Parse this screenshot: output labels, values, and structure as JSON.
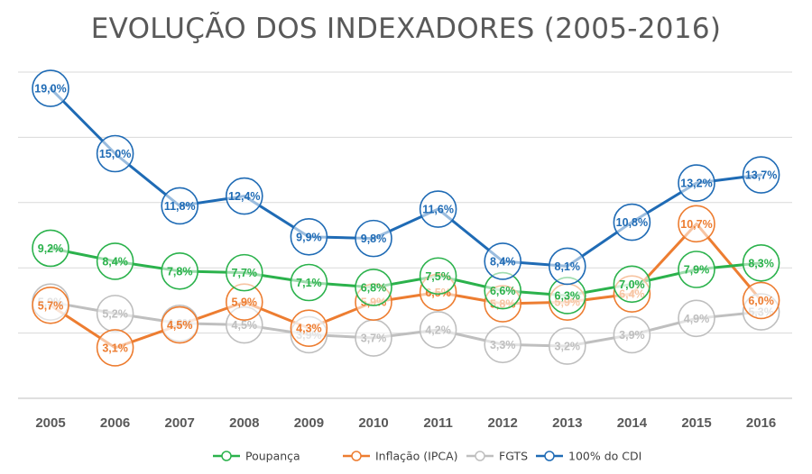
{
  "chart_data": {
    "type": "line",
    "title": "EVOLUÇÃO DOS INDEXADORES (2005-2016)",
    "categories": [
      "2005",
      "2006",
      "2007",
      "2008",
      "2009",
      "2010",
      "2011",
      "2012",
      "2013",
      "2014",
      "2015",
      "2016"
    ],
    "ylim": [
      0,
      20
    ],
    "grid": true,
    "legend_position": "bottom",
    "y_axis_labels_visible": false,
    "series": [
      {
        "name": "Poupança",
        "color": "#2BB24C",
        "values": [
          9.2,
          8.4,
          7.8,
          7.7,
          7.1,
          6.8,
          7.5,
          6.6,
          6.3,
          7.0,
          7.9,
          8.3
        ],
        "labels": [
          "9,2%",
          "8,4%",
          "7,8%",
          "7,7%",
          "7,1%",
          "6,8%",
          "7,5%",
          "6,6%",
          "6,3%",
          "7,0%",
          "7,9%",
          "8,3%"
        ]
      },
      {
        "name": "Inflação (IPCA)",
        "color": "#ED7D31",
        "values": [
          5.7,
          3.1,
          4.5,
          5.9,
          4.3,
          5.9,
          6.5,
          5.8,
          5.9,
          6.4,
          10.7,
          6.0
        ],
        "labels": [
          "5,7%",
          "3,1%",
          "4,5%",
          "5,9%",
          "4,3%",
          "5,9%",
          "6,5%",
          "5,8%",
          "5,9%",
          "6,4%",
          "10,7%",
          "6,0%"
        ]
      },
      {
        "name": "FGTS",
        "color": "#BFBFBF",
        "values": [
          5.9,
          5.2,
          4.6,
          4.5,
          3.9,
          3.7,
          4.2,
          3.3,
          3.2,
          3.9,
          4.9,
          5.3
        ],
        "labels": [
          "5,9%",
          "5,2%",
          "4,6%",
          "4,5%",
          "3,9%",
          "3,7%",
          "4,2%",
          "3,3%",
          "3,2%",
          "3,9%",
          "4,9%",
          "5,3%"
        ]
      },
      {
        "name": "100% do CDI",
        "color": "#1F6BB5",
        "values": [
          19.0,
          15.0,
          11.8,
          12.4,
          9.9,
          9.8,
          11.6,
          8.4,
          8.1,
          10.8,
          13.2,
          13.7
        ],
        "labels": [
          "19,0%",
          "15,0%",
          "11,8%",
          "12,4%",
          "9,9%",
          "9,8%",
          "11,6%",
          "8,4%",
          "8,1%",
          "10,8%",
          "13,2%",
          "13,7%"
        ]
      }
    ]
  }
}
